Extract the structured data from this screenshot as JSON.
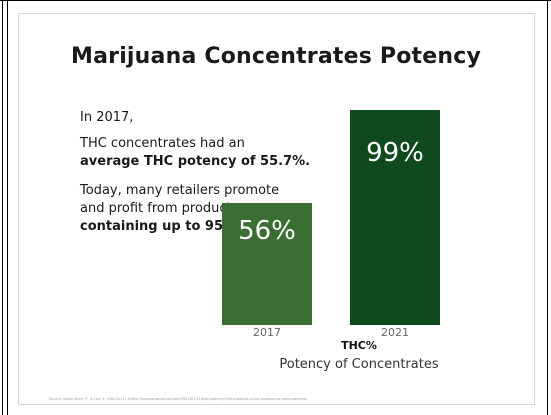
{
  "slide": {
    "title": "Marijuana Concentrates Potency",
    "paragraph_1": "In 2017,",
    "paragraph_2_line_1": "THC concentrates had an",
    "paragraph_2_line_2_bold": "average THC potency of 55.7%.",
    "paragraph_3_line_1": "Today, many retailers promote",
    "paragraph_3_line_2": "and profit from products",
    "paragraph_3_line_3_bold_a": "containing ",
    "paragraph_3_line_3_bold_b": "up to 95–99% THC",
    "source": "Source: Jacob Sherr, F., & Lee, E. (Feb 2021). https://mikeadriansaude.com/2021/07/21/high-potency-the-products-a-use-problem-as-more-wellness"
  },
  "chart_data": {
    "type": "bar",
    "categories": [
      "2017",
      "2021"
    ],
    "values": [
      56,
      99
    ],
    "value_labels": [
      "56%",
      "99%"
    ],
    "colors": [
      "#3b6e33",
      "#0f4a1f"
    ],
    "xlabel": "THC%",
    "xlabel_sub": "Potency of Concentrates",
    "ylabel": "",
    "ylim": [
      0,
      100
    ],
    "grid": false,
    "legend": "none"
  }
}
